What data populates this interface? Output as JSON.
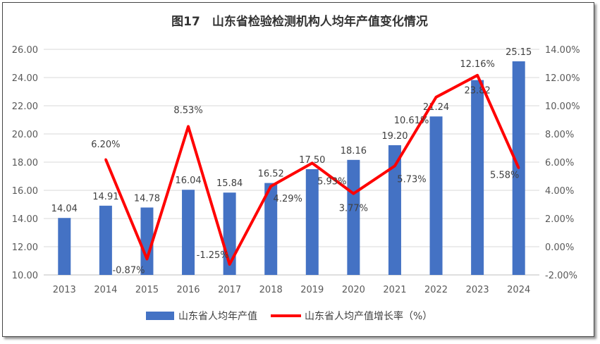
{
  "chart_data": {
    "type": "bar+line",
    "title": "图17　山东省检验检测机构人均年产值变化情况",
    "categories": [
      "2013",
      "2014",
      "2015",
      "2016",
      "2017",
      "2018",
      "2019",
      "2020",
      "2021",
      "2022",
      "2023",
      "2024"
    ],
    "series": [
      {
        "name": "山东省人均年产值",
        "type": "bar",
        "axis": "left",
        "color": "#4472C4",
        "values": [
          14.04,
          14.91,
          14.78,
          16.04,
          15.84,
          16.52,
          17.5,
          18.16,
          19.2,
          21.24,
          23.82,
          25.15
        ],
        "labels": [
          "14.04",
          "14.91",
          "14.78",
          "16.04",
          "15.84",
          "16.52",
          "17.50",
          "18.16",
          "19.20",
          "21.24",
          "23.82",
          "25.15"
        ]
      },
      {
        "name": "山东省人均产值增长率（%）",
        "type": "line",
        "axis": "right",
        "color": "#FF0000",
        "values": [
          null,
          6.2,
          -0.87,
          8.53,
          -1.25,
          4.29,
          5.93,
          3.77,
          5.73,
          10.61,
          12.16,
          5.58
        ],
        "labels": [
          "",
          "6.20%",
          "-0.87%",
          "8.53%",
          "-1.25%",
          "4.29%",
          "5.93%",
          "3.77%",
          "5.73%",
          "10.61%",
          "12.16%",
          "5.58%"
        ]
      }
    ],
    "y_left": {
      "min": 10,
      "max": 26,
      "ticks": [
        "10.00",
        "12.00",
        "14.00",
        "16.00",
        "18.00",
        "20.00",
        "22.00",
        "24.00",
        "26.00"
      ]
    },
    "y_right": {
      "min": -2,
      "max": 14,
      "ticks": [
        "-2.00%",
        "0.00%",
        "2.00%",
        "4.00%",
        "6.00%",
        "8.00%",
        "10.00%",
        "12.00%",
        "14.00%"
      ]
    },
    "grid": true,
    "legend": "bottom"
  }
}
